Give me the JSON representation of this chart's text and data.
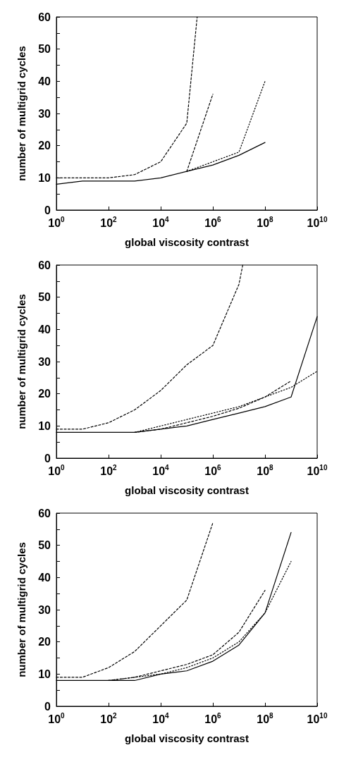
{
  "chart_data": [
    {
      "type": "line",
      "xlabel": "global viscosity contrast",
      "ylabel": "number of multigrid cycles",
      "log": "x",
      "marker": "none",
      "grid": false,
      "xlim": [
        1,
        10000000000
      ],
      "ylim": [
        0,
        60
      ],
      "xticks": [
        {
          "value": 1,
          "label": "10$^{0}$"
        },
        {
          "value": 100,
          "label": "10$^{2}$"
        },
        {
          "value": 10000,
          "label": "10$^{4}$"
        },
        {
          "value": 1000000,
          "label": "10$^{6}$"
        },
        {
          "value": 100000000,
          "label": "10$^{8}$"
        },
        {
          "value": 10000000000,
          "label": "10$^{10}$"
        }
      ],
      "yticks": [
        0,
        {
          "value": 5,
          "label": null
        },
        10,
        {
          "value": 15,
          "label": null
        },
        20,
        {
          "value": 25,
          "label": null
        },
        30,
        {
          "value": 35,
          "label": null
        },
        40,
        {
          "value": 45,
          "label": null
        },
        50,
        {
          "value": 55,
          "label": null
        },
        60
      ],
      "series": [
        {
          "color": "#000000",
          "line_style": "solid",
          "x": [
            1,
            10,
            100,
            1000,
            10000,
            100000,
            1000000,
            10000000,
            100000000
          ],
          "values": [
            8,
            9,
            9,
            9,
            10,
            12,
            14,
            17,
            21
          ]
        },
        {
          "color": "#000000",
          "line_style": "dashed",
          "x": [
            1,
            10,
            100,
            1000,
            10000,
            100000,
            250000
          ],
          "values": [
            10,
            10,
            10,
            11,
            15,
            27,
            60
          ]
        },
        {
          "color": "#000000",
          "line_style": "dashed",
          "x": [
            100000,
            1000000
          ],
          "values": [
            12,
            36
          ]
        },
        {
          "color": "#000000",
          "line_style": "dotted",
          "x": [
            100000,
            1000000,
            10000000,
            100000000
          ],
          "values": [
            12,
            15,
            18,
            40
          ]
        }
      ]
    },
    {
      "type": "line",
      "xlabel": "global viscosity contrast",
      "ylabel": "number of multigrid cycles",
      "log": "x",
      "marker": "none",
      "grid": false,
      "xlim": [
        1,
        10000000000
      ],
      "ylim": [
        0,
        60
      ],
      "xticks": [
        {
          "value": 1,
          "label": "10$^{0}$"
        },
        {
          "value": 100,
          "label": "10$^{2}$"
        },
        {
          "value": 10000,
          "label": "10$^{4}$"
        },
        {
          "value": 1000000,
          "label": "10$^{6}$"
        },
        {
          "value": 100000000,
          "label": "10$^{8}$"
        },
        {
          "value": 10000000000,
          "label": "10$^{10}$"
        }
      ],
      "yticks": [
        0,
        {
          "value": 5,
          "label": null
        },
        10,
        {
          "value": 15,
          "label": null
        },
        20,
        {
          "value": 25,
          "label": null
        },
        30,
        {
          "value": 35,
          "label": null
        },
        40,
        {
          "value": 45,
          "label": null
        },
        50,
        {
          "value": 55,
          "label": null
        },
        60
      ],
      "series": [
        {
          "color": "#000000",
          "line_style": "solid",
          "x": [
            1,
            10,
            100,
            1000,
            10000,
            100000,
            1000000,
            10000000,
            100000000,
            1000000000,
            10000000000
          ],
          "values": [
            8,
            8,
            8,
            8,
            9,
            10,
            12,
            14,
            16,
            19,
            44
          ]
        },
        {
          "color": "#000000",
          "line_style": "dashed",
          "x": [
            1,
            10,
            100,
            1000,
            10000,
            100000,
            1000000,
            10000000,
            14000000
          ],
          "values": [
            9,
            9,
            11,
            15,
            21,
            29,
            35,
            54,
            60
          ]
        },
        {
          "color": "#000000",
          "line_style": "dashed",
          "x": [
            1000,
            10000,
            100000,
            1000000,
            10000000,
            100000000,
            1000000000
          ],
          "values": [
            8,
            9,
            11,
            13,
            15.5,
            19,
            24
          ]
        },
        {
          "color": "#000000",
          "line_style": "dotted",
          "x": [
            1000,
            10000,
            100000,
            1000000,
            10000000,
            100000000,
            1000000000,
            10000000000
          ],
          "values": [
            8,
            10,
            12,
            14,
            16,
            19,
            22,
            27
          ]
        }
      ]
    },
    {
      "type": "line",
      "xlabel": "global viscosity contrast",
      "ylabel": "number of multigrid cycles",
      "log": "x",
      "marker": "none",
      "grid": false,
      "xlim": [
        1,
        10000000000
      ],
      "ylim": [
        0,
        60
      ],
      "xticks": [
        {
          "value": 1,
          "label": "10$^{0}$"
        },
        {
          "value": 100,
          "label": "10$^{2}$"
        },
        {
          "value": 10000,
          "label": "10$^{4}$"
        },
        {
          "value": 1000000,
          "label": "10$^{6}$"
        },
        {
          "value": 100000000,
          "label": "10$^{8}$"
        },
        {
          "value": 10000000000,
          "label": "10$^{10}$"
        }
      ],
      "yticks": [
        0,
        {
          "value": 5,
          "label": null
        },
        10,
        {
          "value": 15,
          "label": null
        },
        20,
        {
          "value": 25,
          "label": null
        },
        30,
        {
          "value": 35,
          "label": null
        },
        40,
        {
          "value": 45,
          "label": null
        },
        50,
        {
          "value": 55,
          "label": null
        },
        60
      ],
      "series": [
        {
          "color": "#000000",
          "line_style": "solid",
          "x": [
            1,
            10,
            100,
            1000,
            10000,
            100000,
            1000000,
            10000000,
            100000000,
            1000000000
          ],
          "values": [
            8,
            8,
            8,
            8,
            10,
            11,
            14,
            19,
            29,
            54
          ]
        },
        {
          "color": "#000000",
          "line_style": "dashed",
          "x": [
            1,
            10,
            100,
            1000,
            10000,
            100000,
            1000000
          ],
          "values": [
            9,
            9,
            12,
            17,
            25,
            33,
            57
          ]
        },
        {
          "color": "#000000",
          "line_style": "dashed",
          "x": [
            100,
            1000,
            10000,
            100000,
            1000000,
            10000000,
            100000000
          ],
          "values": [
            8,
            9,
            11,
            13,
            16,
            23,
            36
          ]
        },
        {
          "color": "#000000",
          "line_style": "dotted",
          "x": [
            100,
            1000,
            10000,
            100000,
            1000000,
            10000000,
            100000000,
            1000000000
          ],
          "values": [
            8,
            9,
            10,
            12,
            15,
            20,
            29,
            45
          ]
        }
      ]
    }
  ]
}
